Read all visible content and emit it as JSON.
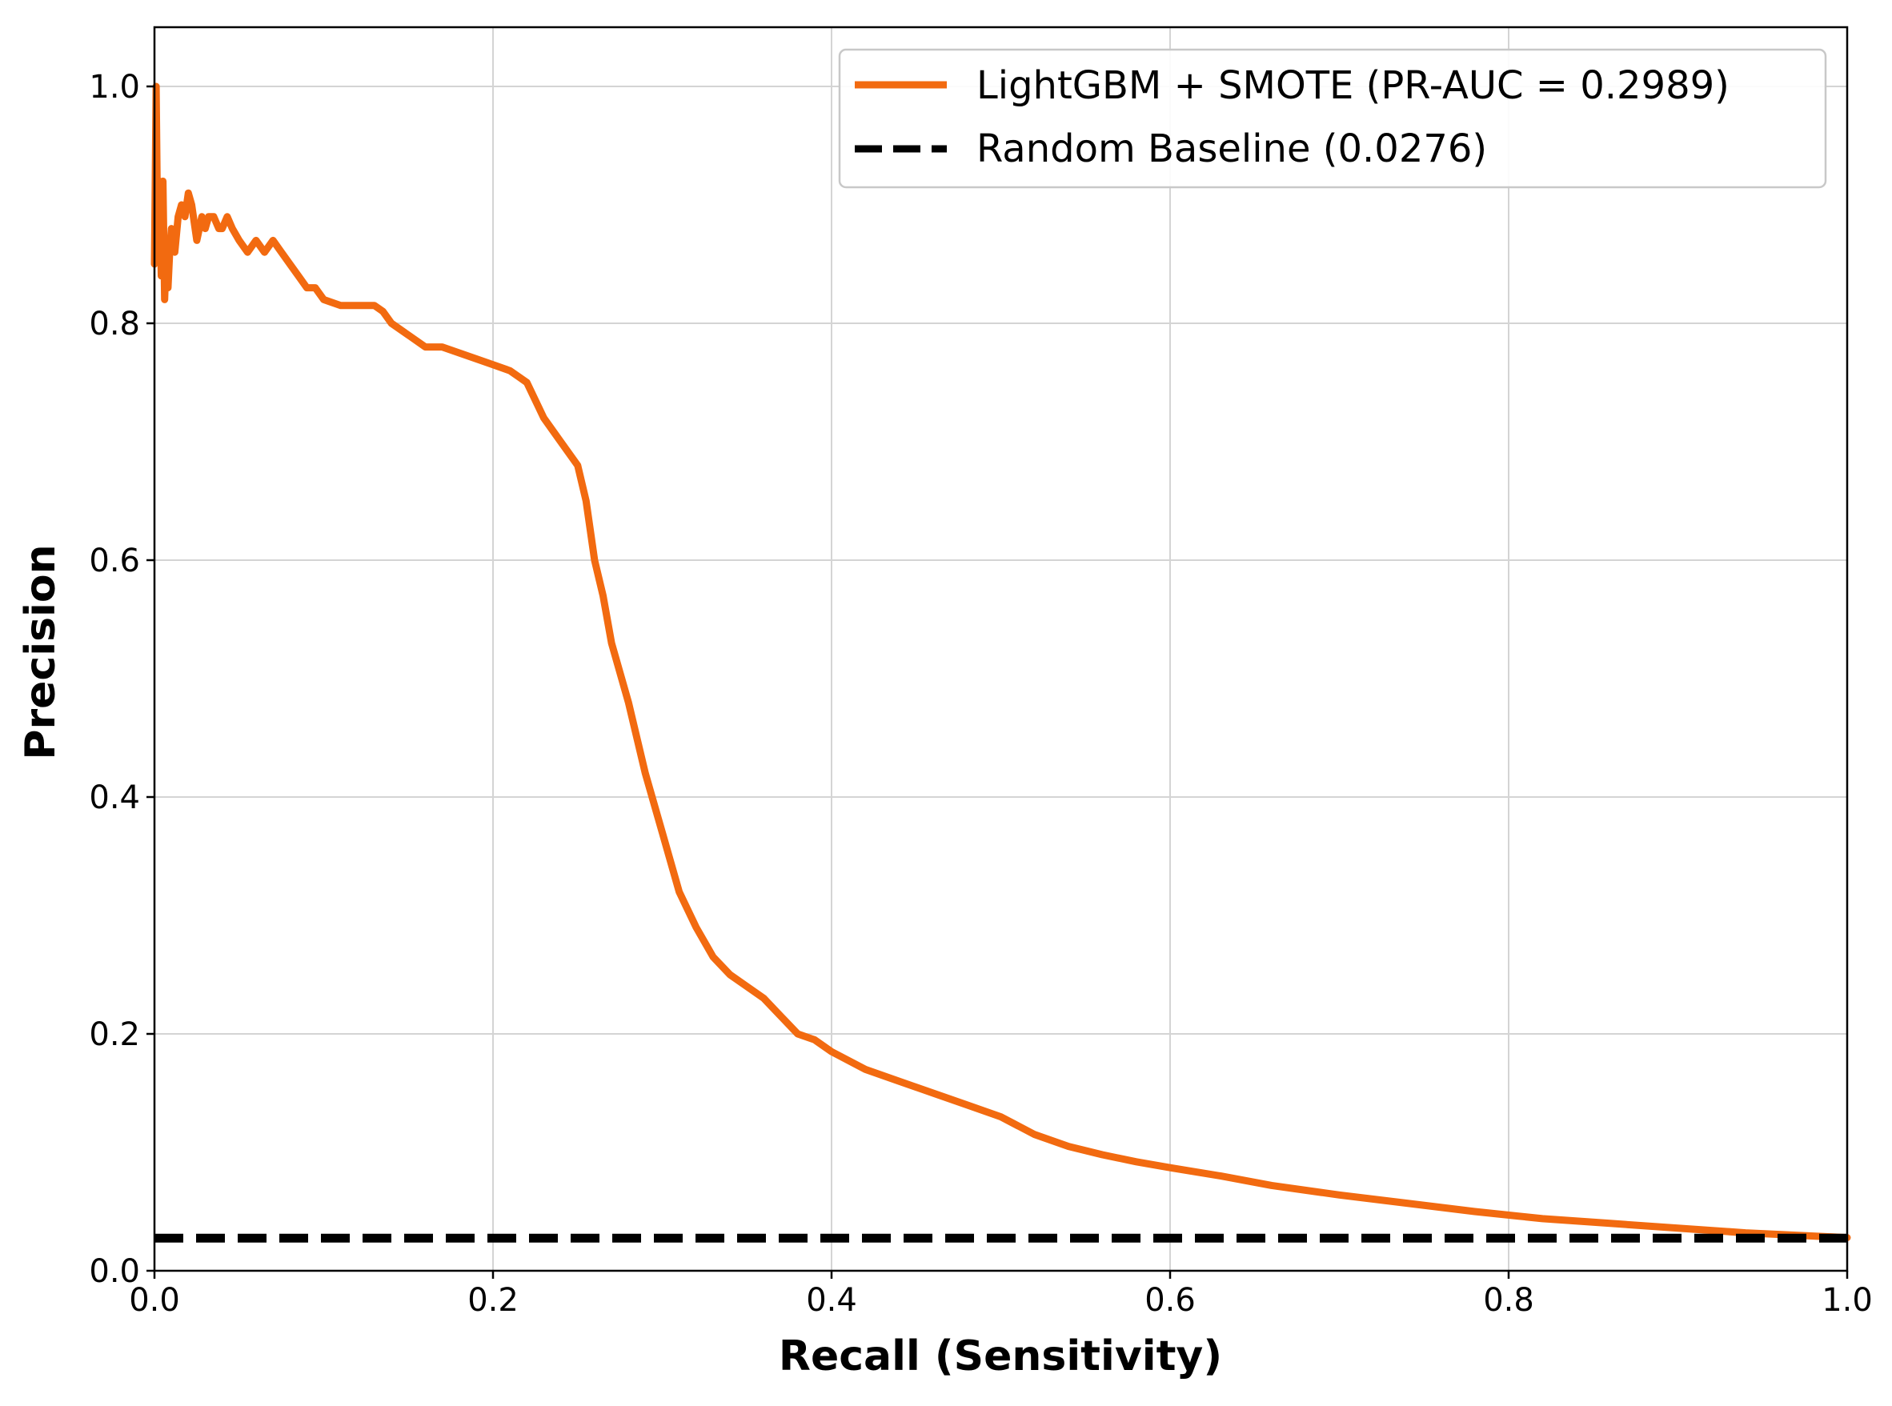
{
  "chart_data": {
    "type": "line",
    "xlabel": "Recall (Sensitivity)",
    "ylabel": "Precision",
    "xlim": [
      0.0,
      1.0
    ],
    "ylim": [
      0.0,
      1.05
    ],
    "xticks": [
      "0.0",
      "0.2",
      "0.4",
      "0.6",
      "0.8",
      "1.0"
    ],
    "yticks": [
      "0.0",
      "0.2",
      "0.4",
      "0.6",
      "0.8",
      "1.0"
    ],
    "grid": true,
    "legend_position": "top-right",
    "series": [
      {
        "name": "LightGBM + SMOTE (PR-AUC = 0.2989)",
        "color": "#f26a10",
        "style": "solid",
        "x": [
          0.0,
          0.001,
          0.002,
          0.003,
          0.004,
          0.005,
          0.006,
          0.007,
          0.008,
          0.009,
          0.01,
          0.012,
          0.014,
          0.016,
          0.018,
          0.02,
          0.022,
          0.025,
          0.028,
          0.03,
          0.032,
          0.035,
          0.038,
          0.04,
          0.043,
          0.046,
          0.05,
          0.055,
          0.06,
          0.065,
          0.07,
          0.075,
          0.08,
          0.085,
          0.09,
          0.095,
          0.1,
          0.11,
          0.12,
          0.13,
          0.135,
          0.14,
          0.15,
          0.16,
          0.17,
          0.18,
          0.19,
          0.2,
          0.21,
          0.215,
          0.22,
          0.23,
          0.24,
          0.25,
          0.255,
          0.26,
          0.265,
          0.27,
          0.28,
          0.29,
          0.3,
          0.31,
          0.32,
          0.33,
          0.34,
          0.35,
          0.36,
          0.37,
          0.38,
          0.39,
          0.4,
          0.42,
          0.44,
          0.46,
          0.48,
          0.5,
          0.52,
          0.54,
          0.56,
          0.58,
          0.6,
          0.63,
          0.66,
          0.7,
          0.74,
          0.78,
          0.82,
          0.86,
          0.9,
          0.94,
          0.97,
          1.0
        ],
        "y": [
          0.85,
          1.0,
          0.86,
          0.92,
          0.84,
          0.92,
          0.82,
          0.86,
          0.83,
          0.86,
          0.88,
          0.86,
          0.89,
          0.9,
          0.89,
          0.91,
          0.9,
          0.87,
          0.89,
          0.88,
          0.89,
          0.89,
          0.88,
          0.88,
          0.89,
          0.88,
          0.87,
          0.86,
          0.87,
          0.86,
          0.87,
          0.86,
          0.85,
          0.84,
          0.83,
          0.83,
          0.82,
          0.815,
          0.815,
          0.815,
          0.81,
          0.8,
          0.79,
          0.78,
          0.78,
          0.775,
          0.77,
          0.765,
          0.76,
          0.755,
          0.75,
          0.72,
          0.7,
          0.68,
          0.65,
          0.6,
          0.57,
          0.53,
          0.48,
          0.42,
          0.37,
          0.32,
          0.29,
          0.265,
          0.25,
          0.24,
          0.23,
          0.215,
          0.2,
          0.195,
          0.185,
          0.17,
          0.16,
          0.15,
          0.14,
          0.13,
          0.115,
          0.105,
          0.098,
          0.092,
          0.087,
          0.08,
          0.072,
          0.064,
          0.057,
          0.05,
          0.044,
          0.04,
          0.036,
          0.032,
          0.03,
          0.028
        ]
      },
      {
        "name": "Random Baseline (0.0276)",
        "color": "#000000",
        "style": "dashed",
        "x": [
          0.0,
          1.0
        ],
        "y": [
          0.0276,
          0.0276
        ]
      }
    ]
  }
}
